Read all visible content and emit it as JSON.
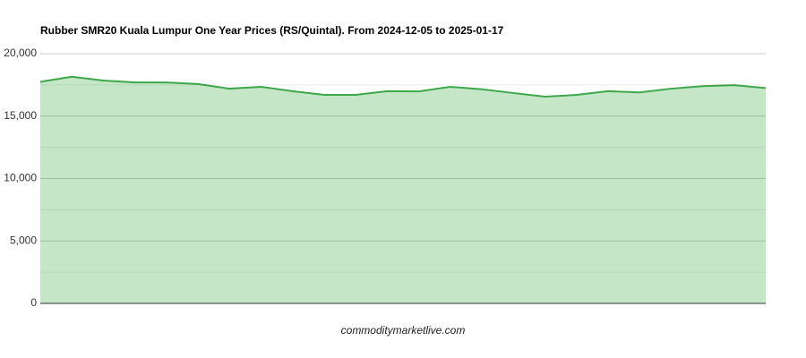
{
  "chart_data": {
    "type": "area",
    "title": "Rubber SMR20 Kuala Lumpur One Year Prices (RS/Quintal). From 2024-12-05 to 2025-01-17",
    "source": "commoditymarketlive.com",
    "categories": [
      null,
      null,
      null,
      null,
      null,
      null,
      null,
      null,
      null,
      null,
      null,
      null,
      null,
      null,
      null,
      null,
      null,
      null,
      null,
      null,
      null,
      null,
      null,
      null
    ],
    "values": [
      17750,
      18150,
      17850,
      17700,
      17700,
      17570,
      17200,
      17350,
      17000,
      16700,
      16700,
      17000,
      16980,
      17350,
      17150,
      16850,
      16560,
      16700,
      17000,
      16900,
      17200,
      17400,
      17480,
      17250
    ],
    "color": "#3fa84a",
    "fill": "#c5e7c8",
    "ylim": [
      0,
      20000
    ],
    "yticks": [
      0,
      {
        "value": 5000,
        "label": "5,000"
      },
      {
        "value": 10000,
        "label": "10,000"
      },
      {
        "value": 15000,
        "label": "15,000"
      },
      {
        "value": 20000,
        "label": "20,000"
      }
    ],
    "minor_yticks": [
      2500,
      7500,
      12500,
      17500
    ],
    "grid": true
  }
}
